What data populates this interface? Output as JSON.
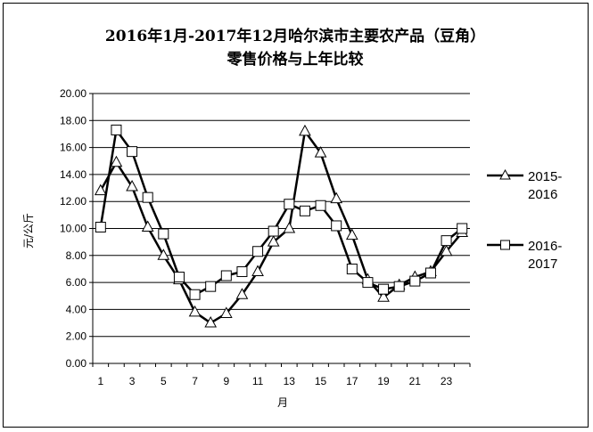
{
  "chart_data": {
    "type": "line",
    "title_line1": "2016年1月-2017年12月哈尔滨市主要农产品（豆角）",
    "title_line2": "零售价格与上年比较",
    "xlabel": "月",
    "ylabel": "元/公斤",
    "ylim": [
      0,
      20
    ],
    "yticks": [
      "0.00",
      "2.00",
      "4.00",
      "6.00",
      "8.00",
      "10.00",
      "12.00",
      "14.00",
      "16.00",
      "18.00",
      "20.00"
    ],
    "x": [
      1,
      2,
      3,
      4,
      5,
      6,
      7,
      8,
      9,
      10,
      11,
      12,
      13,
      14,
      15,
      16,
      17,
      18,
      19,
      20,
      21,
      22,
      23,
      24
    ],
    "xtick_labels": [
      "1",
      "3",
      "5",
      "7",
      "9",
      "11",
      "13",
      "15",
      "17",
      "19",
      "21",
      "23"
    ],
    "grid": true,
    "legend_position": "right",
    "series": [
      {
        "name": "2015-2016",
        "name_line1": "2015-",
        "name_line2": "2016",
        "marker": "triangle",
        "color": "#000000",
        "values": [
          12.8,
          14.9,
          13.1,
          10.1,
          8.0,
          6.2,
          3.8,
          3.0,
          3.7,
          5.1,
          6.8,
          9.0,
          10.0,
          17.2,
          15.6,
          12.2,
          9.5,
          6.2,
          4.9,
          5.8,
          6.4,
          6.8,
          8.3,
          9.7
        ]
      },
      {
        "name": "2016-2017",
        "name_line1": "2016-",
        "name_line2": "2017",
        "marker": "square",
        "color": "#000000",
        "values": [
          10.1,
          17.3,
          15.7,
          12.3,
          9.6,
          6.4,
          5.1,
          5.7,
          6.5,
          6.8,
          8.3,
          9.8,
          11.8,
          11.3,
          11.7,
          10.2,
          7.0,
          6.0,
          5.5,
          5.7,
          6.1,
          6.7,
          9.1,
          10.0
        ]
      }
    ]
  }
}
